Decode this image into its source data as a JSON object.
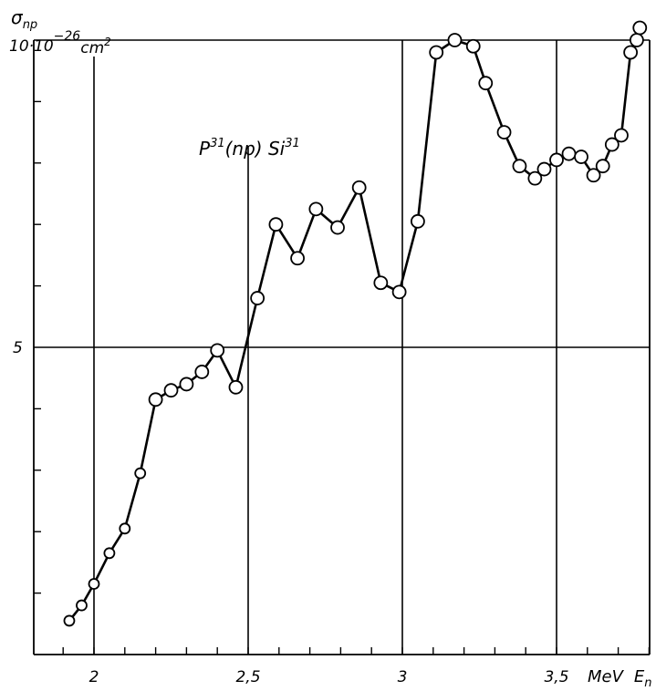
{
  "chart_data": {
    "type": "line",
    "title": "P³¹(np) Si³¹",
    "annotation": {
      "base": "P",
      "sup1": "31",
      "middle": "(np) Si",
      "sup2": "31"
    },
    "ylabel": {
      "symbol": "σ",
      "subscript": "np",
      "scale": "10·10",
      "exponent": "−26",
      "unit": "cm",
      "unit_power": "2"
    },
    "xlabel": {
      "unit": "MeV",
      "symbol": "E",
      "subscript": "n"
    },
    "x_ticks": [
      {
        "value": 2.0,
        "label": "2"
      },
      {
        "value": 2.5,
        "label": "2,5"
      },
      {
        "value": 3.0,
        "label": "3"
      },
      {
        "value": 3.5,
        "label": "3,5"
      }
    ],
    "y_ticks": [
      {
        "value": 5,
        "label": "5"
      }
    ],
    "y_minor_ticks": [
      1,
      2,
      3,
      4,
      6,
      7,
      8,
      9
    ],
    "x_vertical_lines": [
      2.0,
      2.5,
      3.0,
      3.5
    ],
    "y_horizontal_lines": [
      5,
      10
    ],
    "xlim": [
      1.8,
      3.82
    ],
    "ylim": [
      0,
      10
    ],
    "x": [
      1.92,
      1.96,
      2.0,
      2.05,
      2.1,
      2.15,
      2.2,
      2.25,
      2.3,
      2.35,
      2.4,
      2.46,
      2.53,
      2.59,
      2.66,
      2.72,
      2.79,
      2.86,
      2.93,
      2.99,
      3.05,
      3.11,
      3.17,
      3.23,
      3.27,
      3.33,
      3.38,
      3.43,
      3.46,
      3.5,
      3.54,
      3.58,
      3.62,
      3.65,
      3.68,
      3.71,
      3.74,
      3.76,
      3.77
    ],
    "y": [
      0.55,
      0.8,
      1.15,
      1.65,
      2.05,
      2.95,
      4.15,
      4.3,
      4.4,
      4.6,
      4.95,
      4.35,
      5.8,
      7.0,
      6.45,
      7.25,
      6.95,
      7.6,
      6.05,
      5.9,
      7.05,
      9.8,
      10.0,
      9.9,
      9.3,
      8.5,
      7.95,
      7.75,
      7.9,
      8.05,
      8.15,
      8.1,
      7.8,
      7.95,
      8.3,
      8.45,
      9.8,
      10.0,
      10.2
    ]
  }
}
